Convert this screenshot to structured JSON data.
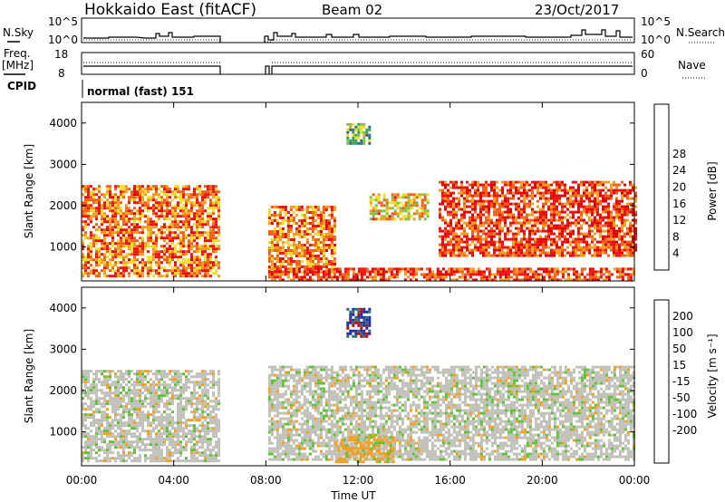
{
  "header": {
    "station": "Hokkaido East (fitACF)",
    "beam": "Beam 02",
    "date": "23/Oct/2017"
  },
  "nsky_panel": {
    "label": "N.Sky",
    "left_ticks": [
      "10^5",
      "10^0"
    ],
    "right_ticks": [
      "10^5",
      "10^0"
    ],
    "right_label": "N.Search"
  },
  "freq_panel": {
    "label_line1": "Freq.",
    "label_line2": "[MHz]",
    "left_ticks": [
      "18",
      "8"
    ],
    "right_ticks": [
      "60",
      "0"
    ],
    "right_label": "Nave"
  },
  "cpid_panel": {
    "label": "CPID",
    "mode_text": "normal (fast) 151"
  },
  "x_axis": {
    "title": "Time UT",
    "ticks": [
      "00:00",
      "04:00",
      "08:00",
      "12:00",
      "16:00",
      "20:00",
      "00:00"
    ]
  },
  "chart_data": [
    {
      "type": "heatmap",
      "name": "power",
      "xlabel": "Time UT",
      "ylabel": "Slant Range [km]",
      "xlim_hours": [
        0,
        24
      ],
      "ylim_km": [
        180,
        4500
      ],
      "yticks": [
        "1000",
        "2000",
        "3000",
        "4000"
      ],
      "data_gap_hours": [
        6.0,
        8.1
      ],
      "colorbar": {
        "label": "Power [dB]",
        "ticks": [
          "4",
          "8",
          "12",
          "16",
          "20",
          "24",
          "28"
        ],
        "range": [
          0,
          32
        ],
        "colors": [
          "#1010e0",
          "#2040b0",
          "#2e6e7e",
          "#3c9c5a",
          "#7cc04a",
          "#e8e02c",
          "#f0a020",
          "#f06018",
          "#f01010",
          "#e00000"
        ]
      },
      "echo_regions": [
        {
          "t0": 0.0,
          "t1": 6.0,
          "r0": 300,
          "r1": 2500,
          "power_db": 26
        },
        {
          "t0": 8.1,
          "t1": 11.0,
          "r0": 400,
          "r1": 2000,
          "power_db": 24
        },
        {
          "t0": 8.1,
          "t1": 24.0,
          "r0": 180,
          "r1": 500,
          "power_db": 30
        },
        {
          "t0": 15.5,
          "t1": 24.0,
          "r0": 800,
          "r1": 2600,
          "power_db": 28
        },
        {
          "t0": 12.5,
          "t1": 15.0,
          "r0": 1700,
          "r1": 2300,
          "power_db": 22
        },
        {
          "t0": 11.5,
          "t1": 12.5,
          "r0": 3500,
          "r1": 4000,
          "power_db": 14
        }
      ]
    },
    {
      "type": "heatmap",
      "name": "velocity",
      "xlabel": "Time UT",
      "ylabel": "Slant Range [km]",
      "xlim_hours": [
        0,
        24
      ],
      "ylim_km": [
        180,
        4500
      ],
      "yticks": [
        "1000",
        "2000",
        "3000",
        "4000"
      ],
      "data_gap_hours": [
        6.0,
        8.1
      ],
      "colorbar": {
        "label": "Velocity [m s⁻¹]",
        "ticks": [
          "200",
          "100",
          "50",
          "15",
          "-15",
          "-50",
          "-100",
          "-200"
        ],
        "colors": [
          "#1a2ea8",
          "#2e6e6e",
          "#3a8a3a",
          "#60c03a",
          "#c0c0b8",
          "#c0c0b8",
          "#f0a020",
          "#f07010",
          "#f02010",
          "#d00000"
        ]
      },
      "echo_regions": [
        {
          "t0": 0.0,
          "t1": 6.0,
          "r0": 300,
          "r1": 2500,
          "velocity": 0
        },
        {
          "t0": 8.1,
          "t1": 24.0,
          "r0": 300,
          "r1": 2600,
          "velocity": 0
        },
        {
          "t0": 11.0,
          "t1": 13.5,
          "r0": 300,
          "r1": 900,
          "velocity": -60
        },
        {
          "t0": 11.5,
          "t1": 12.5,
          "r0": 3300,
          "r1": 4000,
          "velocity": 150
        }
      ]
    }
  ]
}
